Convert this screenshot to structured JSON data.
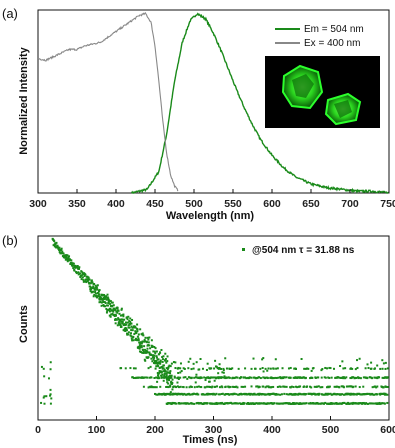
{
  "chart_data": [
    {
      "panel_label": "(a)",
      "type": "line",
      "xlabel": "Wavelength (nm)",
      "ylabel": "Normalized Intensity",
      "xlim": [
        300,
        750
      ],
      "ylim": [
        0,
        1.02
      ],
      "x_ticks": [
        "300",
        "350",
        "400",
        "450",
        "500",
        "550",
        "600",
        "650",
        "700",
        "750"
      ],
      "y_ticks": [],
      "grid": false,
      "legend_position": "top-right",
      "inset": {
        "description_color": "#1aa31a"
      },
      "series": [
        {
          "name": "Em = 504 nm",
          "color": "#1a8a1a",
          "x": [
            420,
            440,
            455,
            465,
            475,
            485,
            495,
            504,
            515,
            525,
            535,
            545,
            555,
            565,
            575,
            585,
            600,
            615,
            630,
            650,
            670,
            690,
            710,
            730,
            750
          ],
          "y": [
            0.0,
            0.02,
            0.12,
            0.33,
            0.62,
            0.84,
            0.96,
            1.0,
            0.97,
            0.89,
            0.79,
            0.68,
            0.57,
            0.47,
            0.38,
            0.3,
            0.21,
            0.14,
            0.09,
            0.05,
            0.03,
            0.02,
            0.01,
            0.01,
            0.0
          ]
        },
        {
          "name": "Ex = 400 nm",
          "color": "#888888",
          "x": [
            300,
            310,
            320,
            330,
            340,
            350,
            360,
            370,
            380,
            390,
            400,
            410,
            420,
            430,
            438,
            445,
            450,
            455,
            460,
            465,
            470,
            475,
            480
          ],
          "y": [
            0.75,
            0.74,
            0.76,
            0.78,
            0.8,
            0.8,
            0.82,
            0.83,
            0.84,
            0.87,
            0.9,
            0.93,
            0.96,
            0.99,
            1.0,
            0.95,
            0.82,
            0.62,
            0.4,
            0.22,
            0.1,
            0.04,
            0.01
          ]
        }
      ]
    },
    {
      "panel_label": "(b)",
      "type": "scatter",
      "xlabel": "Times (ns)",
      "ylabel": "Counts",
      "xlim": [
        0,
        600
      ],
      "ylim": [
        0,
        1.0
      ],
      "x_ticks": [
        "0",
        "100",
        "200",
        "300",
        "400",
        "500",
        "600"
      ],
      "y_ticks": [],
      "grid": false,
      "legend_position": "top-right",
      "legend_text": "@504 nm τ = 31.88 ns",
      "series": [
        {
          "name": "@504 nm τ = 31.88 ns",
          "color": "#1a8a1a",
          "decay_onset_ns": 25,
          "decay_end_ns": 230,
          "baseline_levels": [
            0.28,
            0.23,
            0.18,
            0.14,
            0.09
          ]
        }
      ]
    }
  ]
}
